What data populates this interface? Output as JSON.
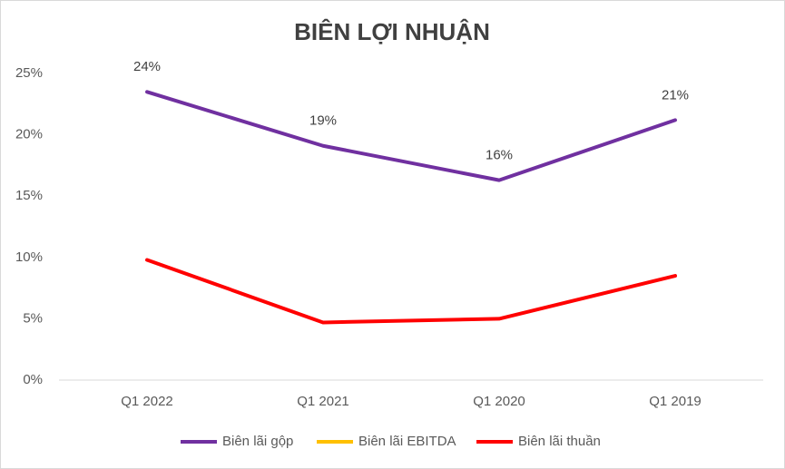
{
  "chart_data": {
    "type": "line",
    "title": "BIÊN LỢI NHUẬN",
    "categories": [
      "Q1 2022",
      "Q1 2021",
      "Q1 2020",
      "Q1 2019"
    ],
    "series": [
      {
        "name": "Biên lãi gộp",
        "color": "#7030a0",
        "values": [
          23.5,
          19.1,
          16.3,
          21.2
        ],
        "value_labels": [
          "24%",
          "19%",
          "16%",
          "21%"
        ]
      },
      {
        "name": "Biên lãi EBITDA",
        "color": "#ffc000",
        "values": [
          null,
          null,
          null,
          null
        ]
      },
      {
        "name": "Biên lãi thuần",
        "color": "#ff0000",
        "values": [
          9.8,
          4.7,
          5.0,
          8.5
        ]
      }
    ],
    "ylim": [
      0,
      25
    ],
    "yticks": [
      {
        "value": 0,
        "label": "0%"
      },
      {
        "value": 5,
        "label": "5%"
      },
      {
        "value": 10,
        "label": "10%"
      },
      {
        "value": 15,
        "label": "15%"
      },
      {
        "value": 20,
        "label": "20%"
      },
      {
        "value": 25,
        "label": "25%"
      }
    ],
    "grid": false,
    "legend": "bottom"
  }
}
